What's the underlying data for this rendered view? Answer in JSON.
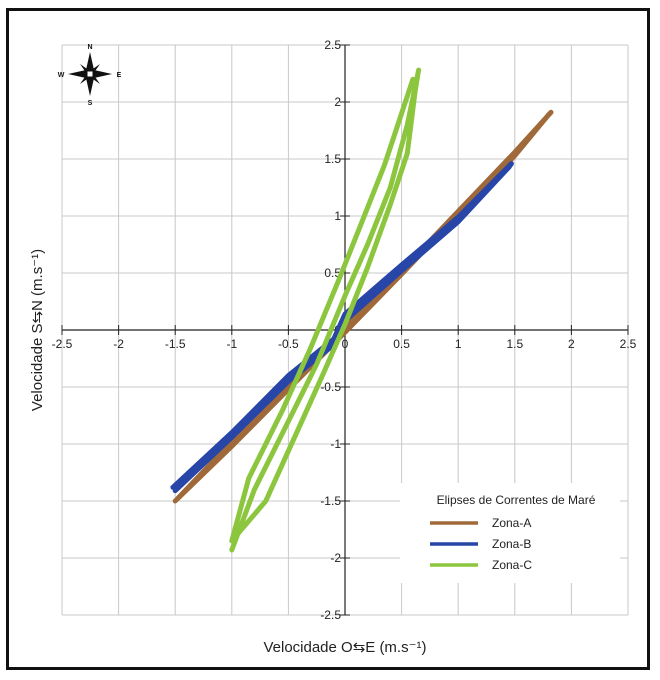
{
  "chart_data": {
    "type": "line",
    "title": "",
    "xlabel": "Velocidade O⇆E (m.s⁻¹)",
    "ylabel": "Velocidade S⇆N (m.s⁻¹)",
    "xlim": [
      -2.5,
      2.5
    ],
    "ylim": [
      -2.5,
      2.5
    ],
    "x_ticks": [
      "-2.5",
      "-2",
      "-1.5",
      "-1",
      "-0.5",
      "0",
      "0.5",
      "1",
      "1.5",
      "2",
      "2.5"
    ],
    "y_ticks": [
      "2.5",
      "2",
      "1.5",
      "1",
      "0.5",
      "0",
      "-0.5",
      "-1",
      "-1.5",
      "-2",
      "-2.5"
    ],
    "grid": true,
    "legend": {
      "title": "Elipses de Correntes de Maré",
      "placement": "bottom-right"
    },
    "series": [
      {
        "name": "Zona-A",
        "color": "#a0693a",
        "x": [
          -1.48,
          -1.0,
          -0.5,
          0.0,
          0.5,
          1.0,
          1.5,
          1.82,
          1.8,
          1.5,
          1.0,
          0.5,
          0.0,
          -0.5,
          -1.0,
          -1.5
        ],
        "y": [
          -1.48,
          -0.98,
          -0.48,
          0.02,
          0.52,
          1.04,
          1.56,
          1.91,
          1.89,
          1.53,
          1.01,
          0.49,
          -0.02,
          -0.52,
          -1.02,
          -1.5
        ]
      },
      {
        "name": "Zona-B",
        "color": "#2845a8",
        "x": [
          -1.52,
          -1.0,
          -0.5,
          -0.1,
          0.0,
          0.5,
          1.0,
          1.47,
          1.45,
          1.0,
          0.5,
          0.0,
          -0.1,
          -0.5,
          -1.0,
          -1.5
        ],
        "y": [
          -1.38,
          -0.9,
          -0.4,
          -0.08,
          0.14,
          0.57,
          0.99,
          1.46,
          1.43,
          0.95,
          0.52,
          0.08,
          -0.13,
          -0.45,
          -0.94,
          -1.41
        ]
      },
      {
        "name": "Zona-C",
        "color": "#8cc63f",
        "x": [
          -1.0,
          -0.8,
          -0.5,
          -0.25,
          0.0,
          0.2,
          0.4,
          0.55,
          0.65,
          0.62,
          0.55,
          0.4,
          0.2,
          0.0,
          -0.2,
          -0.45,
          -0.7,
          -1.0,
          -0.85,
          -0.55,
          -0.3,
          -0.05,
          0.15,
          0.35,
          0.5,
          0.6
        ],
        "y": [
          -1.93,
          -1.4,
          -0.8,
          -0.3,
          0.3,
          0.75,
          1.25,
          1.8,
          2.28,
          2.1,
          1.55,
          1.1,
          0.55,
          0.05,
          -0.4,
          -0.95,
          -1.5,
          -1.85,
          -1.3,
          -0.7,
          -0.15,
          0.45,
          0.95,
          1.45,
          1.9,
          2.2
        ]
      }
    ]
  },
  "compass": {
    "north": "N",
    "south": "S",
    "east": "E",
    "west": "W"
  }
}
